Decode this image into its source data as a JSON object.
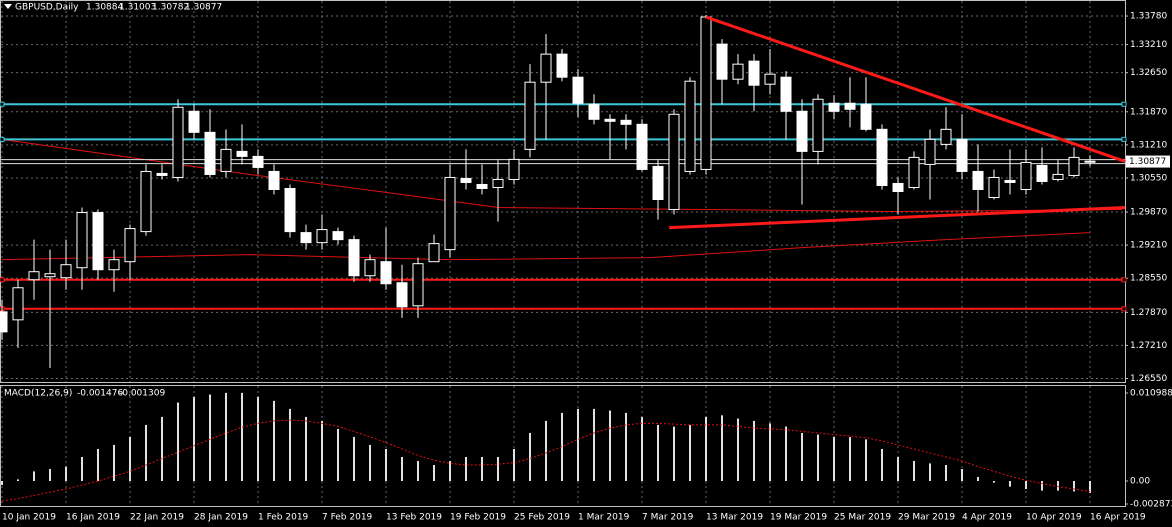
{
  "chart_data": [
    {
      "type": "candlestick",
      "title": "GBPUSD,Daily",
      "categories": [
        "10 Jan 2019",
        null,
        null,
        null,
        "16 Jan 2019",
        null,
        null,
        null,
        "22 Jan 2019",
        null,
        null,
        null,
        "28 Jan 2019",
        null,
        null,
        null,
        "1 Feb 2019",
        null,
        null,
        null,
        "7 Feb 2019",
        null,
        null,
        null,
        "13 Feb 2019",
        null,
        null,
        null,
        "19 Feb 2019",
        null,
        null,
        null,
        "25 Feb 2019",
        null,
        null,
        null,
        "1 Mar 2019",
        null,
        null,
        null,
        "7 Mar 2019",
        null,
        null,
        null,
        "13 Mar 2019",
        null,
        null,
        null,
        "19 Mar 2019",
        null,
        null,
        null,
        "25 Mar 2019",
        null,
        null,
        null,
        "29 Mar 2019",
        null,
        null,
        null,
        "4 Apr 2019",
        null,
        null,
        null,
        "10 Apr 2019",
        null,
        null,
        null,
        "16 Apr 2019"
      ],
      "open": [
        1.2788,
        1.2772,
        1.2852,
        1.2858,
        1.2856,
        1.2876,
        1.2986,
        1.2872,
        1.2888,
        1.2948,
        1.3064,
        1.3056,
        1.3188,
        1.3146,
        1.3068,
        1.3108,
        1.3098,
        1.3068,
        1.3034,
        1.2946,
        1.2926,
        1.2948,
        1.2932,
        1.286,
        1.2888,
        1.2846,
        1.28,
        1.2888,
        1.2912,
        1.3054,
        1.3042,
        1.3036,
        1.3052,
        1.3112,
        1.3246,
        1.3302,
        1.3256,
        1.3202,
        1.3172,
        1.317,
        1.3162,
        1.3078,
        1.2992,
        1.3068,
        1.3072,
        1.3322,
        1.3252,
        1.3288,
        1.3242,
        1.3256,
        1.3188,
        1.3108,
        1.3204,
        1.3204,
        1.3202,
        1.3152,
        1.3044,
        1.3036,
        1.3082,
        1.3122,
        1.3132,
        1.3068,
        1.3016,
        1.305,
        1.3032,
        1.308,
        1.3052,
        1.306,
        1.30884
      ],
      "high": [
        1.2812,
        1.2852,
        1.2932,
        1.2912,
        1.2932,
        1.2996,
        1.2992,
        1.2912,
        1.2962,
        1.3082,
        1.3082,
        1.3212,
        1.3202,
        1.3192,
        1.3152,
        1.3162,
        1.3112,
        1.3082,
        1.3042,
        1.2962,
        1.2982,
        1.2956,
        1.294,
        1.2902,
        1.2956,
        1.2882,
        1.2896,
        1.2942,
        1.3082,
        1.3112,
        1.3082,
        1.3092,
        1.3112,
        1.3282,
        1.3342,
        1.3312,
        1.3272,
        1.3222,
        1.3182,
        1.3182,
        1.3172,
        1.3092,
        1.3192,
        1.3256,
        1.338,
        1.3332,
        1.3302,
        1.3302,
        1.3312,
        1.3268,
        1.3212,
        1.3222,
        1.322,
        1.3256,
        1.3256,
        1.3162,
        1.3056,
        1.3108,
        1.3152,
        1.3196,
        1.3182,
        1.3122,
        1.3072,
        1.3112,
        1.3112,
        1.3116,
        1.3092,
        1.3116,
        1.31003
      ],
      "low": [
        1.2732,
        1.2716,
        1.2812,
        1.2676,
        1.2832,
        1.2832,
        1.2852,
        1.2828,
        1.2852,
        1.294,
        1.3052,
        1.3048,
        1.3132,
        1.3056,
        1.3056,
        1.3082,
        1.3062,
        1.3022,
        1.2936,
        1.2912,
        1.2912,
        1.2922,
        1.2848,
        1.2848,
        1.2832,
        1.2776,
        1.2776,
        1.2888,
        1.2896,
        1.3032,
        1.3022,
        1.2968,
        1.3042,
        1.3096,
        1.3132,
        1.3248,
        1.3176,
        1.3162,
        1.3092,
        1.3112,
        1.3068,
        1.2972,
        1.2982,
        1.3062,
        1.3062,
        1.3202,
        1.3242,
        1.3188,
        1.3222,
        1.3132,
        1.3002,
        1.3082,
        1.3172,
        1.3156,
        1.3148,
        1.3032,
        1.2982,
        1.3032,
        1.3012,
        1.3112,
        1.3052,
        1.2988,
        1.3012,
        1.3022,
        1.3022,
        1.3042,
        1.3048,
        1.3056,
        1.30782
      ],
      "close": [
        1.2748,
        1.2836,
        1.2868,
        1.2864,
        1.2882,
        1.2986,
        1.2872,
        1.2892,
        1.2954,
        1.3068,
        1.306,
        1.3196,
        1.3146,
        1.3062,
        1.3112,
        1.3098,
        1.3076,
        1.3032,
        1.2948,
        1.2926,
        1.2952,
        1.2932,
        1.286,
        1.2892,
        1.2844,
        1.2798,
        1.2884,
        1.2924,
        1.3056,
        1.3046,
        1.3034,
        1.3052,
        1.3092,
        1.3246,
        1.3302,
        1.3256,
        1.3204,
        1.3172,
        1.3168,
        1.3162,
        1.3072,
        1.3012,
        1.3182,
        1.3248,
        1.3376,
        1.3252,
        1.3282,
        1.324,
        1.3262,
        1.3188,
        1.3108,
        1.3212,
        1.3188,
        1.3192,
        1.3152,
        1.304,
        1.3028,
        1.3096,
        1.3132,
        1.3152,
        1.3068,
        1.3032,
        1.3056,
        1.3046,
        1.3086,
        1.3048,
        1.3062,
        1.3096,
        1.30877
      ],
      "ylim": [
        1.2648,
        1.3402
      ],
      "yticks": [
        {
          "value": 1.3378,
          "label": "1.33780"
        },
        {
          "value": 1.3321,
          "label": "1.33210"
        },
        {
          "value": 1.3265,
          "label": "1.32650"
        },
        {
          "value": 1.3187,
          "label": "1.31870"
        },
        {
          "value": 1.3121,
          "label": "1.31210"
        },
        {
          "value": 1.3055,
          "label": "1.30550"
        },
        {
          "value": 1.2987,
          "label": "1.29870"
        },
        {
          "value": 1.2921,
          "label": "1.29210"
        },
        {
          "value": 1.2855,
          "label": "1.28550"
        },
        {
          "value": 1.2787,
          "label": "1.27870"
        },
        {
          "value": 1.2721,
          "label": "1.27210"
        },
        {
          "value": 1.2655,
          "label": "1.26550"
        }
      ],
      "grid": true,
      "moving_averages": [
        {
          "color": "#e01010",
          "points": [
            {
              "i": 0,
              "v": 1.3132
            },
            {
              "i": 15.5,
              "v": 1.3062
            },
            {
              "i": 25,
              "v": 1.3022
            },
            {
              "i": 31,
              "v": 1.2996
            },
            {
              "i": 44,
              "v": 1.2992
            },
            {
              "i": 56,
              "v": 1.2988
            },
            {
              "i": 70,
              "v": 1.2992
            }
          ]
        },
        {
          "color": "#e01010",
          "points": [
            {
              "i": 0,
              "v": 1.2892
            },
            {
              "i": 15.5,
              "v": 1.2902
            },
            {
              "i": 28,
              "v": 1.2892
            },
            {
              "i": 40.5,
              "v": 1.2896
            },
            {
              "i": 50,
              "v": 1.2916
            },
            {
              "i": 59,
              "v": 1.2932
            },
            {
              "i": 68,
              "v": 1.2946
            }
          ]
        }
      ],
      "horizontal_lines": [
        {
          "value": 1.3202,
          "color": "#3cc8d8"
        },
        {
          "value": 1.3132,
          "color": "#3cc8d8"
        },
        {
          "value": 1.2852,
          "color": "#ff1a1a"
        },
        {
          "value": 1.2794,
          "color": "#ff1a1a"
        }
      ],
      "trend_lines": [
        {
          "color": "#ff1a1a",
          "points": [
            {
              "i": 44,
              "v": 1.3376
            },
            {
              "i": 70.2,
              "v": 1.3088
            }
          ]
        },
        {
          "color": "#ff1a1a",
          "points": [
            {
              "i": 41.7,
              "v": 1.2956
            },
            {
              "i": 70.2,
              "v": 1.2996
            }
          ]
        }
      ]
    },
    {
      "type": "macd",
      "title": "MACD(12,26,9)",
      "values": [
        -0.0005,
        0.0002,
        0.0012,
        0.0015,
        0.0018,
        0.003,
        0.004,
        0.0045,
        0.0055,
        0.007,
        0.008,
        0.0098,
        0.0105,
        0.0108,
        0.011,
        0.011,
        0.0105,
        0.01,
        0.009,
        0.008,
        0.0075,
        0.0065,
        0.0055,
        0.0045,
        0.004,
        0.003,
        0.0025,
        0.002,
        0.0025,
        0.003,
        0.003,
        0.003,
        0.004,
        0.006,
        0.0075,
        0.0085,
        0.009,
        0.009,
        0.0088,
        0.0085,
        0.008,
        0.007,
        0.0068,
        0.007,
        0.008,
        0.0082,
        0.0078,
        0.0075,
        0.0072,
        0.0068,
        0.006,
        0.0058,
        0.0055,
        0.0055,
        0.0052,
        0.004,
        0.003,
        0.0025,
        0.0022,
        0.002,
        0.0015,
        0.0005,
        -0.0002,
        -0.0007,
        -0.001,
        -0.0012,
        -0.0012,
        -0.0013,
        -0.001476
      ],
      "signal": [
        -0.0025,
        -0.0022,
        -0.0018,
        -0.0014,
        -0.001,
        -0.0005,
        0.0,
        0.0006,
        0.0012,
        0.002,
        0.0028,
        0.0036,
        0.0044,
        0.0052,
        0.006,
        0.0067,
        0.0072,
        0.0075,
        0.0076,
        0.0075,
        0.0072,
        0.0068,
        0.0062,
        0.0055,
        0.0048,
        0.004,
        0.0032,
        0.0026,
        0.0022,
        0.002,
        0.002,
        0.0021,
        0.0023,
        0.0028,
        0.0035,
        0.0043,
        0.0052,
        0.006,
        0.0066,
        0.007,
        0.0072,
        0.0072,
        0.0071,
        0.007,
        0.007,
        0.007,
        0.0068,
        0.0066,
        0.0065,
        0.0064,
        0.0062,
        0.006,
        0.0058,
        0.0056,
        0.0054,
        0.005,
        0.0045,
        0.004,
        0.0035,
        0.003,
        0.0025,
        0.0018,
        0.0012,
        0.0006,
        0.0001,
        -0.0003,
        -0.0007,
        -0.001,
        -0.001309
      ],
      "color": "#e0e0e0",
      "signal_color": "#e01010",
      "ylim": [
        -0.00312,
        0.01186
      ],
      "yticks": [
        0.010988,
        {
          "value": 0,
          "label": "0.00"
        },
        -0.002873
      ]
    }
  ]
}
